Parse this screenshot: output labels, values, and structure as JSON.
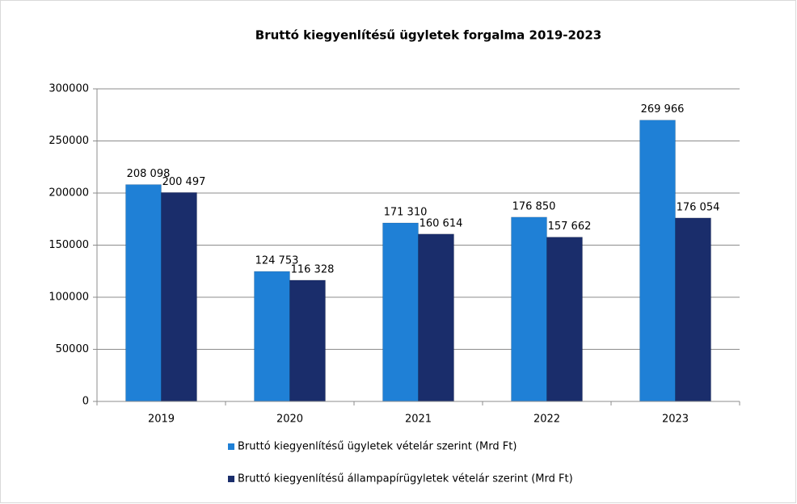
{
  "chart_data": {
    "type": "bar",
    "title": "Bruttó kiegyenlítésű ügyletek forgalma 2019-2023",
    "categories": [
      "2019",
      "2020",
      "2021",
      "2022",
      "2023"
    ],
    "series": [
      {
        "name": "Bruttó kiegyenlítésű ügyletek vételár szerint (Mrd Ft)",
        "color": "#1f80d6",
        "values": [
          208098,
          124753,
          171310,
          176850,
          269966
        ],
        "value_labels": [
          "208 098",
          "124 753",
          "171 310",
          "176 850",
          "269 966"
        ]
      },
      {
        "name": "Bruttó kiegyenlítésű állampapírügyletek vételár szerint (Mrd Ft)",
        "color": "#1a2d6b",
        "values": [
          200497,
          116328,
          160614,
          157662,
          176054
        ],
        "value_labels": [
          "200 497",
          "116 328",
          "160 614",
          "157 662",
          "176 054"
        ]
      }
    ],
    "ylim": [
      0,
      300000
    ],
    "yticks": [
      0,
      50000,
      100000,
      150000,
      200000,
      250000,
      300000
    ],
    "grid": true,
    "legend": "bottom"
  }
}
